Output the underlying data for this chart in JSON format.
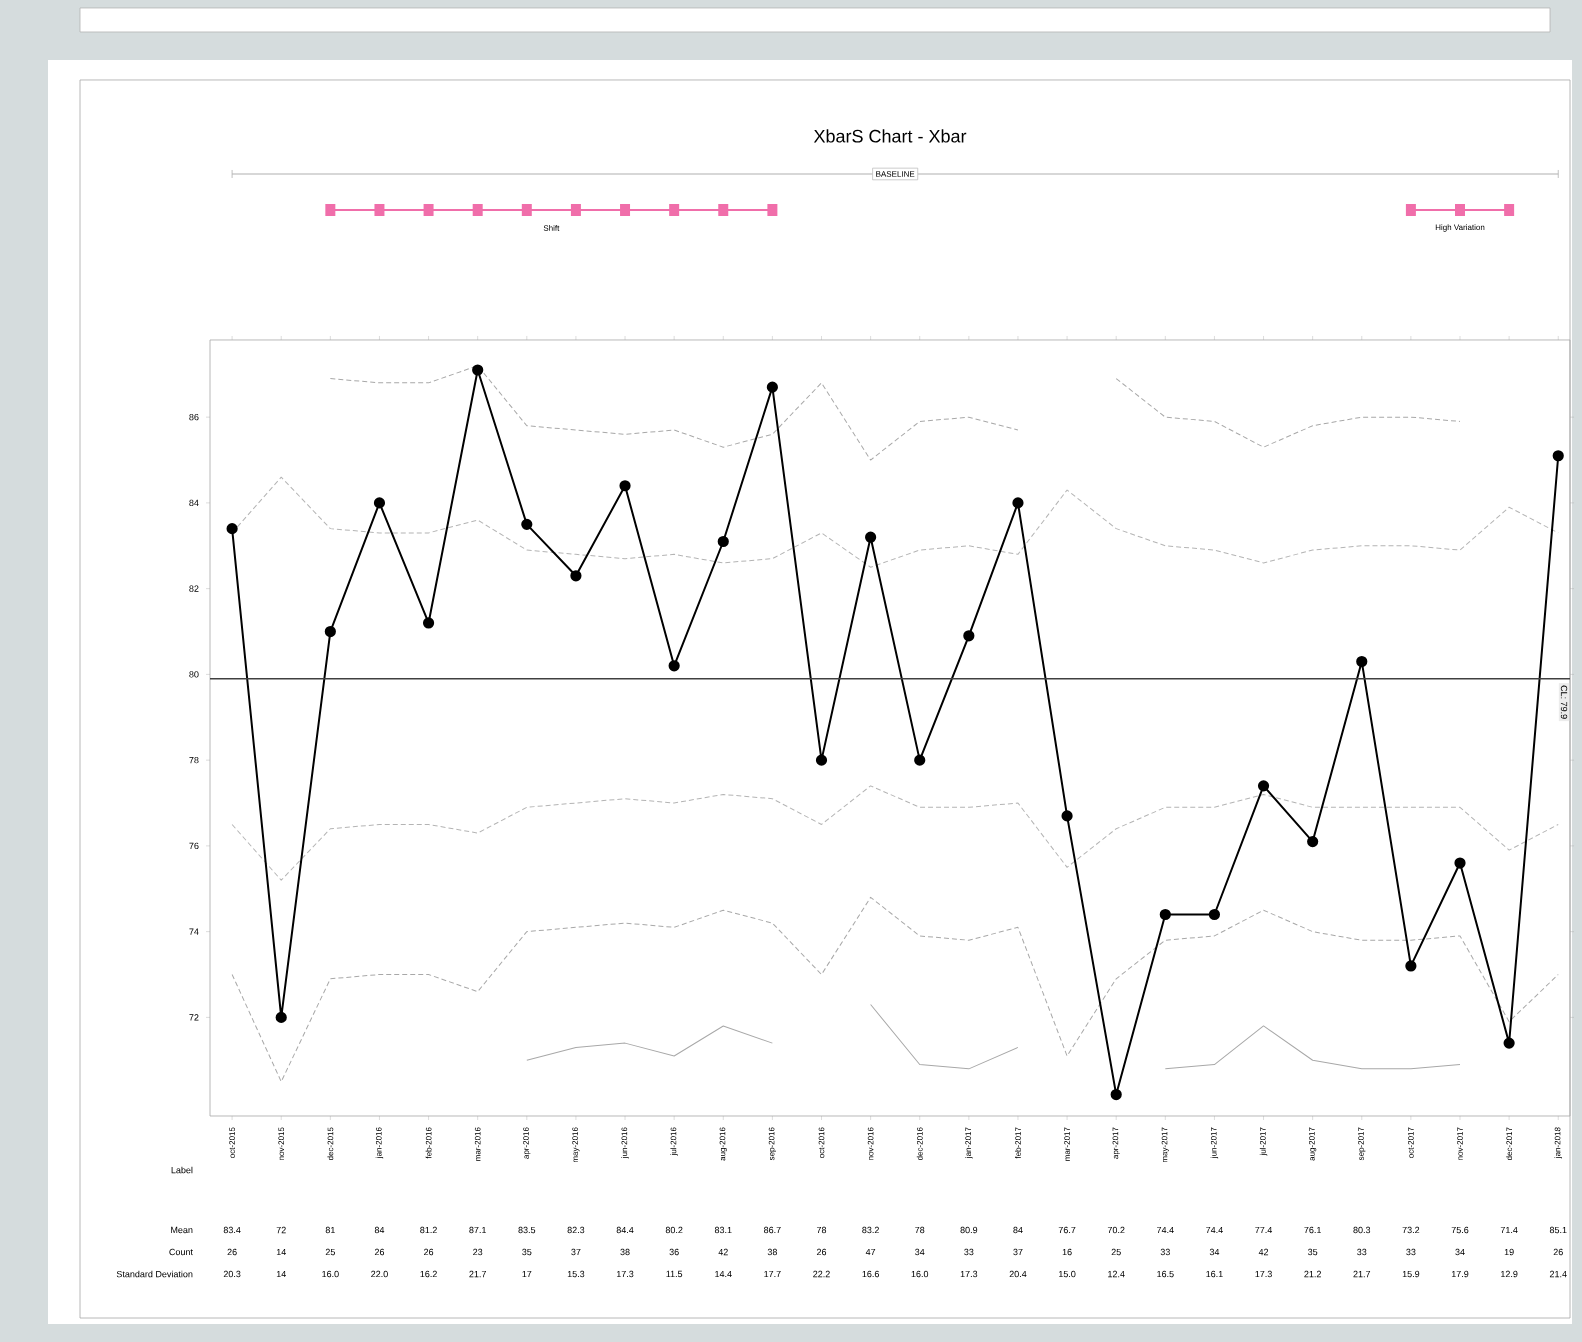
{
  "chart_data": {
    "type": "line",
    "title": "XbarS Chart - Xbar",
    "categories": [
      "oct-2015",
      "nov-2015",
      "dec-2015",
      "jan-2016",
      "feb-2016",
      "mar-2016",
      "apr-2016",
      "may-2016",
      "jun-2016",
      "jul-2016",
      "aug-2016",
      "sep-2016",
      "oct-2016",
      "nov-2016",
      "dec-2016",
      "jan-2017",
      "feb-2017",
      "mar-2017",
      "apr-2017",
      "may-2017",
      "jun-2017",
      "jul-2017",
      "aug-2017",
      "sep-2017",
      "oct-2017",
      "nov-2017",
      "dec-2017",
      "jan-2018"
    ],
    "series": [
      {
        "color": "#a8a8a8",
        "line_style": "dashed",
        "marker": "none",
        "values": [
          null,
          null,
          86.9,
          86.8,
          86.8,
          87.2,
          85.8,
          85.7,
          85.6,
          85.7,
          85.3,
          85.6,
          86.8,
          85.0,
          85.9,
          86.0,
          85.7,
          null,
          86.9,
          86.0,
          85.9,
          85.3,
          85.8,
          86.0,
          86.0,
          85.9,
          null,
          null
        ]
      },
      {
        "color": "#b4b4b4",
        "line_style": "dashed",
        "marker": "none",
        "values": [
          83.3,
          84.6,
          83.4,
          83.3,
          83.3,
          83.6,
          82.9,
          82.8,
          82.7,
          82.8,
          82.6,
          82.7,
          83.3,
          82.5,
          82.9,
          83.0,
          82.8,
          84.3,
          83.4,
          83.0,
          82.9,
          82.6,
          82.9,
          83.0,
          83.0,
          82.9,
          83.9,
          83.3
        ]
      },
      {
        "color": "#b4b4b4",
        "line_style": "dashed",
        "marker": "none",
        "values": [
          76.5,
          75.2,
          76.4,
          76.5,
          76.5,
          76.3,
          76.9,
          77.0,
          77.1,
          77.0,
          77.2,
          77.1,
          76.5,
          77.4,
          76.9,
          76.9,
          77.0,
          75.5,
          76.4,
          76.9,
          76.9,
          77.2,
          76.9,
          76.9,
          76.9,
          76.9,
          75.9,
          76.5
        ]
      },
      {
        "color": "#a8a8a8",
        "line_style": "dashed",
        "marker": "none",
        "values": [
          73.0,
          70.5,
          72.9,
          73.0,
          73.0,
          72.6,
          74.0,
          74.1,
          74.2,
          74.1,
          74.5,
          74.2,
          73.0,
          74.8,
          73.9,
          73.8,
          74.1,
          71.1,
          72.9,
          73.8,
          73.9,
          74.5,
          74.0,
          73.8,
          73.8,
          73.9,
          71.9,
          73.0
        ]
      },
      {
        "color": "#a8a8a8",
        "line_style": "solid",
        "marker": "none",
        "values": [
          null,
          null,
          null,
          null,
          null,
          null,
          71.0,
          71.3,
          71.4,
          71.1,
          71.8,
          71.4,
          null,
          72.3,
          70.9,
          70.8,
          71.3,
          null,
          null,
          70.8,
          70.9,
          71.8,
          71.0,
          70.8,
          70.8,
          70.9,
          null,
          null
        ]
      },
      {
        "color": "#000000",
        "line_style": "solid",
        "marker": "circle",
        "values": [
          83.4,
          72,
          81,
          84,
          81.2,
          87.1,
          83.5,
          82.3,
          84.4,
          80.2,
          83.1,
          86.7,
          78,
          83.2,
          78,
          80.9,
          84,
          76.7,
          70.2,
          74.4,
          74.4,
          77.4,
          76.1,
          80.3,
          73.2,
          75.6,
          71.4,
          85.1
        ],
        "value_labels": [
          "83.4",
          "72",
          "81",
          "84",
          "81.2",
          "87.1",
          "83.5",
          "82.3",
          "84.4",
          "80.2",
          "83.1",
          "86.7",
          "78",
          "83.2",
          "78",
          "80.9",
          "84",
          "76.7",
          "70.2",
          "74.4",
          "74.4",
          "77.4",
          "76.1",
          "80.3",
          "73.2",
          "75.6",
          "71.4",
          "85.1"
        ]
      }
    ],
    "ylim": [
      69.7,
      87.8
    ],
    "yticks": [
      72,
      74,
      76,
      78,
      80,
      82,
      84,
      86
    ],
    "ref_lines": [
      {
        "axis": "y",
        "value": 79.9,
        "label": "CL: 79.9",
        "color": "#404040",
        "line_style": "solid"
      }
    ],
    "annotations": [
      "Label",
      "Mean",
      "Count",
      "Standard Deviation",
      "26",
      "14",
      "25",
      "26",
      "26",
      "23",
      "35",
      "37",
      "38",
      "36",
      "42",
      "38",
      "26",
      "47",
      "34",
      "33",
      "37",
      "16",
      "25",
      "33",
      "34",
      "42",
      "35",
      "33",
      "33",
      "34",
      "19",
      "26",
      "20.3",
      "14",
      "16.0",
      "22.0",
      "16.2",
      "21.7",
      "17",
      "15.3",
      "17.3",
      "11.5",
      "14.4",
      "17.7",
      "22.2",
      "16.6",
      "16.0",
      "17.3",
      "20.4",
      "15.0",
      "12.4",
      "16.5",
      "16.1",
      "17.3",
      "21.2",
      "21.7",
      "15.9",
      "17.9",
      "12.9",
      "21.4",
      "BASELINE",
      "Shift",
      "High Variation"
    ]
  }
}
